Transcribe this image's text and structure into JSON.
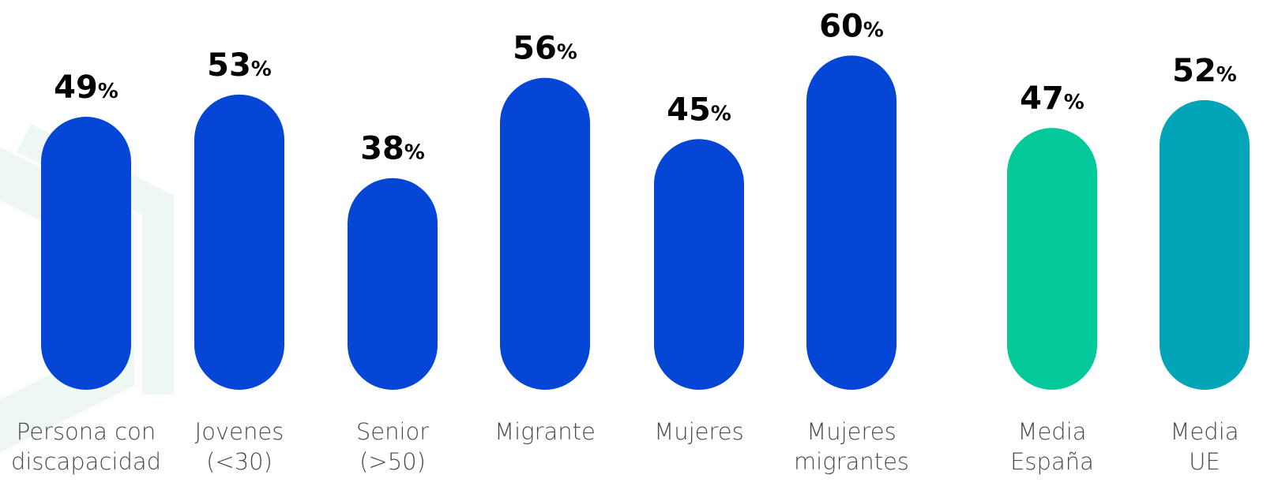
{
  "chart_data": {
    "type": "bar",
    "title": "",
    "xlabel": "",
    "ylabel": "",
    "ylim": [
      0,
      60
    ],
    "grid": false,
    "value_suffix": "%",
    "categories": [
      [
        "Persona con",
        "discapacidad"
      ],
      [
        "Jovenes",
        "(<30)"
      ],
      [
        "Senior",
        "(>50)"
      ],
      [
        "Migrante"
      ],
      [
        "Mujeres"
      ],
      [
        "Mujeres",
        "migrantes"
      ],
      [
        "Media",
        "España"
      ],
      [
        "Media",
        "UE"
      ]
    ],
    "values": [
      49,
      53,
      38,
      56,
      45,
      60,
      47,
      52
    ],
    "colors": [
      "#0546d6",
      "#0546d6",
      "#0546d6",
      "#0546d6",
      "#0546d6",
      "#0546d6",
      "#04c99a",
      "#02a5b8"
    ]
  }
}
